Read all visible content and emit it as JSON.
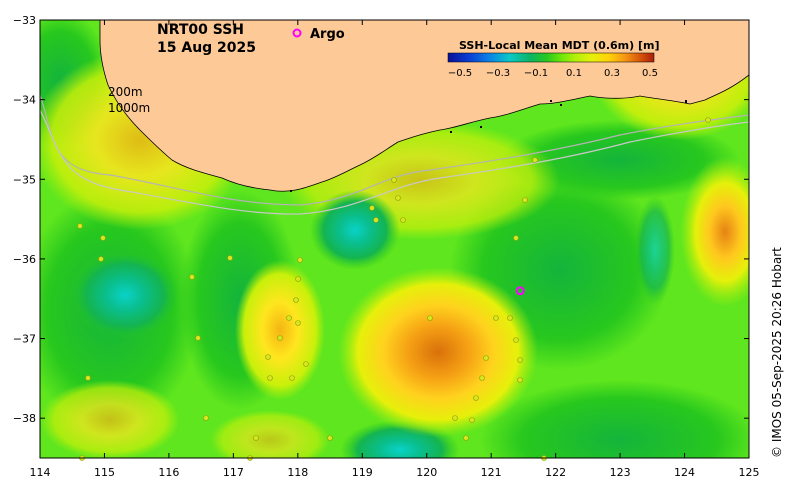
{
  "title": {
    "product": "NRT00 SSH",
    "date": "15 Aug 2025"
  },
  "legend": {
    "argo_label": "Argo",
    "argo_color": "#ff00ff"
  },
  "isobaths": {
    "depth1": "200m",
    "depth2": "1000m"
  },
  "colorbar": {
    "title": "SSH-Local Mean MDT (0.6m) [m]",
    "ticks": [
      "−0.5",
      "−0.3",
      "−0.1",
      "0.1",
      "0.3",
      "0.5"
    ],
    "colors": [
      "#0a1296",
      "#0a3cd2",
      "#0a82e6",
      "#0ac8c8",
      "#0ab464",
      "#28c81e",
      "#6ee60a",
      "#b4f00a",
      "#e6f00a",
      "#ffd20a",
      "#f59614",
      "#d2500a",
      "#aa1e0a"
    ]
  },
  "credit": "© IMOS 05-Sep-2025 20:26 Hobart",
  "axes": {
    "x_ticks": [
      "114",
      "115",
      "116",
      "117",
      "118",
      "119",
      "120",
      "121",
      "122",
      "123",
      "124",
      "125"
    ],
    "y_ticks": [
      "−33",
      "−34",
      "−35",
      "−36",
      "−37",
      "−38"
    ],
    "lon_range": [
      114,
      125
    ],
    "lat_range": [
      -38.5,
      -33
    ]
  },
  "colors": {
    "land": "#fcc997",
    "background_green": "#5fe61e",
    "argo": "#ff00ff"
  },
  "argo_float": {
    "lon": 121.45,
    "lat": -36.4
  }
}
